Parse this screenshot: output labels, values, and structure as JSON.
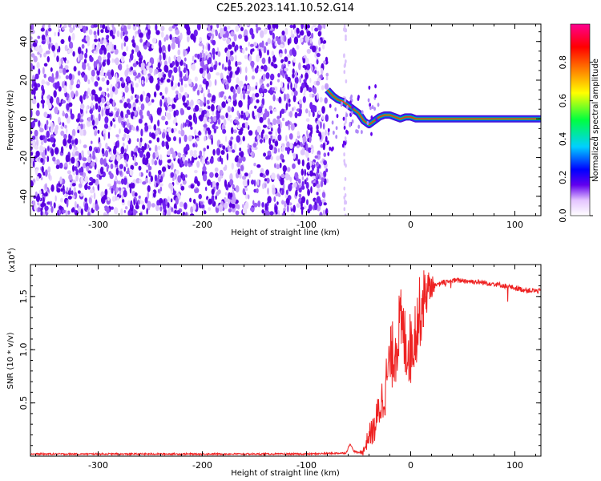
{
  "chart_data": [
    {
      "type": "heatmap",
      "title": "C2E5.2023.141.10.52.G14",
      "xlabel": "Height of straight line (km)",
      "ylabel": "Frequency (Hz)",
      "xlim": [
        -365,
        125
      ],
      "ylim": [
        -50,
        49
      ],
      "x_ticks": [
        -300,
        -200,
        -100,
        0,
        100
      ],
      "y_ticks": [
        -40,
        -20,
        0,
        20,
        40
      ],
      "colorbar": {
        "label": "Normalized spectral amplitude",
        "range": [
          0,
          1
        ],
        "ticks": [
          "0.0",
          "0.2",
          "0.4",
          "0.6",
          "0.8"
        ],
        "colors": [
          "#ffffff",
          "#e4c4ff",
          "#6200ee",
          "#0000ff",
          "#00d0ff",
          "#00ff40",
          "#ffff00",
          "#ff8000",
          "#ff0000",
          "#ff0090"
        ]
      },
      "signal_track": {
        "x": [
          -80,
          -75,
          -70,
          -65,
          -60,
          -55,
          -50,
          -45,
          -40,
          -35,
          -30,
          -25,
          -20,
          -15,
          -10,
          -5,
          0,
          5,
          10,
          20,
          40,
          60,
          80,
          100,
          125
        ],
        "frequency": [
          15,
          12,
          10,
          9,
          7,
          5,
          3,
          -1,
          -3,
          -1,
          1,
          2,
          2,
          1,
          0,
          1,
          1,
          0,
          0,
          0,
          0,
          0,
          0,
          0,
          0
        ]
      },
      "noise_region_x": [
        -365,
        -80
      ]
    },
    {
      "type": "line",
      "xlabel": "Height of straight line (km)",
      "ylabel": "SNR (10 * v/v)",
      "y_multiplier": "(x10",
      "y_multiplier_exp": "4",
      "y_multiplier_close": ")",
      "xlim": [
        -365,
        125
      ],
      "ylim": [
        0,
        1.8
      ],
      "x_ticks": [
        -300,
        -200,
        -100,
        0,
        100
      ],
      "y_ticks": [
        "0.5",
        "1.0",
        "1.5"
      ],
      "color": "#ee2222",
      "series": [
        {
          "x": [
            -365,
            -300,
            -200,
            -100,
            -62,
            -58,
            -55,
            -50,
            -45,
            -40,
            -35,
            -30,
            -25,
            -20,
            -15,
            -10,
            -5,
            0,
            5,
            10,
            15,
            20,
            25,
            30,
            40,
            50,
            60,
            70,
            80,
            90,
            100,
            110,
            125
          ],
          "y": [
            0.02,
            0.02,
            0.02,
            0.02,
            0.03,
            0.12,
            0.05,
            0.03,
            0.05,
            0.2,
            0.25,
            0.45,
            0.6,
            0.9,
            1.0,
            1.25,
            1.05,
            1.0,
            1.2,
            1.4,
            1.55,
            1.6,
            1.6,
            1.63,
            1.65,
            1.65,
            1.64,
            1.63,
            1.62,
            1.6,
            1.58,
            1.56,
            1.55
          ]
        }
      ]
    }
  ]
}
